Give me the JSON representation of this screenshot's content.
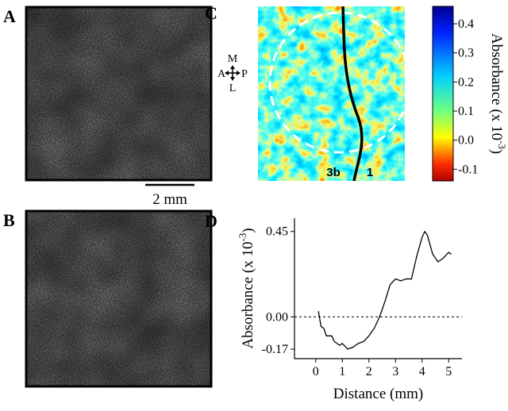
{
  "panels": {
    "a": "A",
    "b": "B",
    "c": "C",
    "d": "D"
  },
  "scale_bar": "2 mm",
  "orientation": {
    "m": "M",
    "l": "L",
    "a": "A",
    "p": "P"
  },
  "regions": [
    "3b",
    "1"
  ],
  "chart_data": [
    {
      "type": "colorbar",
      "y_label": "Absorbance (x 10",
      "y_label_exponent": "-3",
      "y_label_end": ")",
      "ylim": [
        -0.14,
        0.46
      ],
      "yticks": [
        0.4,
        0.3,
        0.2,
        0.1,
        {
          "value": 0,
          "label": "0.0"
        },
        -0.1
      ]
    },
    {
      "type": "line",
      "x_label": "Distance (mm)",
      "y_label": "Absorbance (x 10",
      "y_label_exponent": "-3",
      "y_label_end": ")",
      "x": [
        0.1,
        0.2,
        0.3,
        0.4,
        0.6,
        0.7,
        0.9,
        1.0,
        1.2,
        1.4,
        1.6,
        1.8,
        2.0,
        2.2,
        2.4,
        2.6,
        2.8,
        3.0,
        3.2,
        3.4,
        3.6,
        3.8,
        4.0,
        4.1,
        4.2,
        4.4,
        4.6,
        4.8,
        5.0,
        5.1
      ],
      "values": [
        0.03,
        -0.05,
        -0.06,
        -0.1,
        -0.1,
        -0.13,
        -0.15,
        -0.14,
        -0.17,
        -0.16,
        -0.14,
        -0.13,
        -0.1,
        -0.06,
        0.0,
        0.08,
        0.17,
        0.2,
        0.19,
        0.2,
        0.2,
        0.32,
        0.42,
        0.45,
        0.43,
        0.33,
        0.29,
        0.31,
        0.34,
        0.33
      ],
      "color": "#000000",
      "reference_line": 0,
      "xlim": [
        -0.8,
        5.5
      ],
      "xticks": [
        0,
        1,
        2,
        3,
        4,
        5
      ],
      "ylim": [
        -0.22,
        0.52
      ],
      "yticks": [
        {
          "value": 0.45,
          "label": "0.45"
        },
        {
          "value": 0,
          "label": "0.00"
        },
        {
          "value": -0.17,
          "label": "-0.17"
        }
      ]
    }
  ]
}
